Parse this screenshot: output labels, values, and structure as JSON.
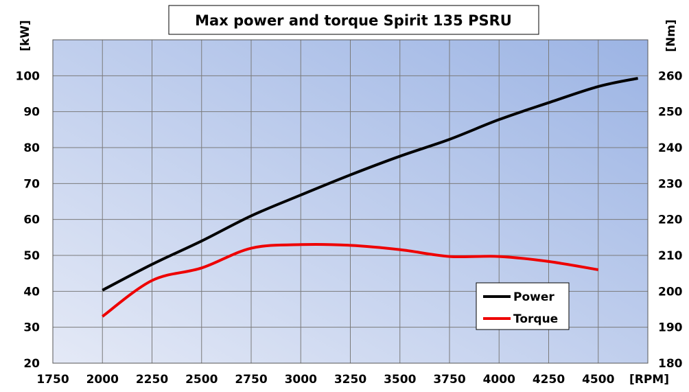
{
  "chart_data": {
    "type": "line",
    "title": "Max power and torque Spirit 135 PSRU",
    "xlabel": "[RPM]",
    "ylabel": "[kW]",
    "y2label": "[Nm]",
    "xlim": [
      1750,
      4750
    ],
    "ylim": [
      20,
      110
    ],
    "y2lim": [
      180,
      270
    ],
    "xticks": [
      1750,
      2000,
      2250,
      2500,
      2750,
      3000,
      3250,
      3500,
      3750,
      4000,
      4250,
      4500
    ],
    "yticks": [
      20,
      30,
      40,
      50,
      60,
      70,
      80,
      90,
      100
    ],
    "y2ticks": [
      180,
      190,
      200,
      210,
      220,
      230,
      240,
      250,
      260
    ],
    "grid": true,
    "legend_position": "bottom-right",
    "series": [
      {
        "name": "Power",
        "axis": "left",
        "color": "#000000",
        "x": [
          2000,
          2250,
          2500,
          2750,
          3000,
          3250,
          3500,
          3750,
          4000,
          4250,
          4500,
          4700
        ],
        "y": [
          40.3,
          47.5,
          54,
          61,
          66.8,
          72.4,
          77.6,
          82.3,
          87.8,
          92.5,
          97,
          99.3
        ]
      },
      {
        "name": "Torque",
        "axis": "right",
        "color": "#ee0000",
        "x": [
          2000,
          2250,
          2500,
          2750,
          3000,
          3250,
          3500,
          3750,
          4000,
          4250,
          4500
        ],
        "y": [
          193,
          203,
          206.5,
          212,
          213,
          212.8,
          211.6,
          209.7,
          209.7,
          208.3,
          206
        ]
      }
    ]
  }
}
